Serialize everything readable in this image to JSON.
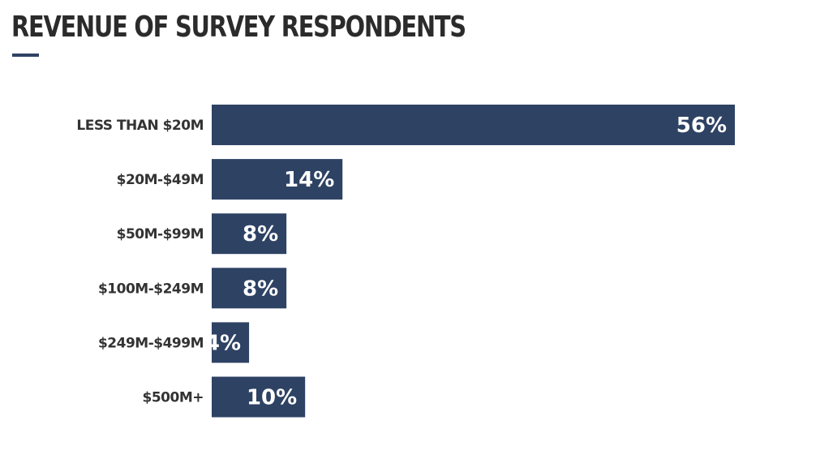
{
  "title": "REVENUE OF SURVEY RESPONDENTS",
  "colors": {
    "bar": "#2e4264",
    "accent": "#2e4264",
    "title": "#2b2b2b",
    "value_text": "#ffffff"
  },
  "chart_data": {
    "type": "bar",
    "orientation": "horizontal",
    "title": "REVENUE OF SURVEY RESPONDENTS",
    "categories": [
      "LESS THAN $20M",
      "$20M-$49M",
      "$50M-$99M",
      "$100M-$249M",
      "$249M-$499M",
      "$500M+"
    ],
    "values": [
      56,
      14,
      8,
      8,
      4,
      10
    ],
    "value_labels": [
      "56%",
      "14%",
      "8%",
      "8%",
      "4%",
      "10%"
    ],
    "unit": "%",
    "xlabel": "",
    "ylabel": "",
    "grid": false,
    "legend": "none"
  }
}
